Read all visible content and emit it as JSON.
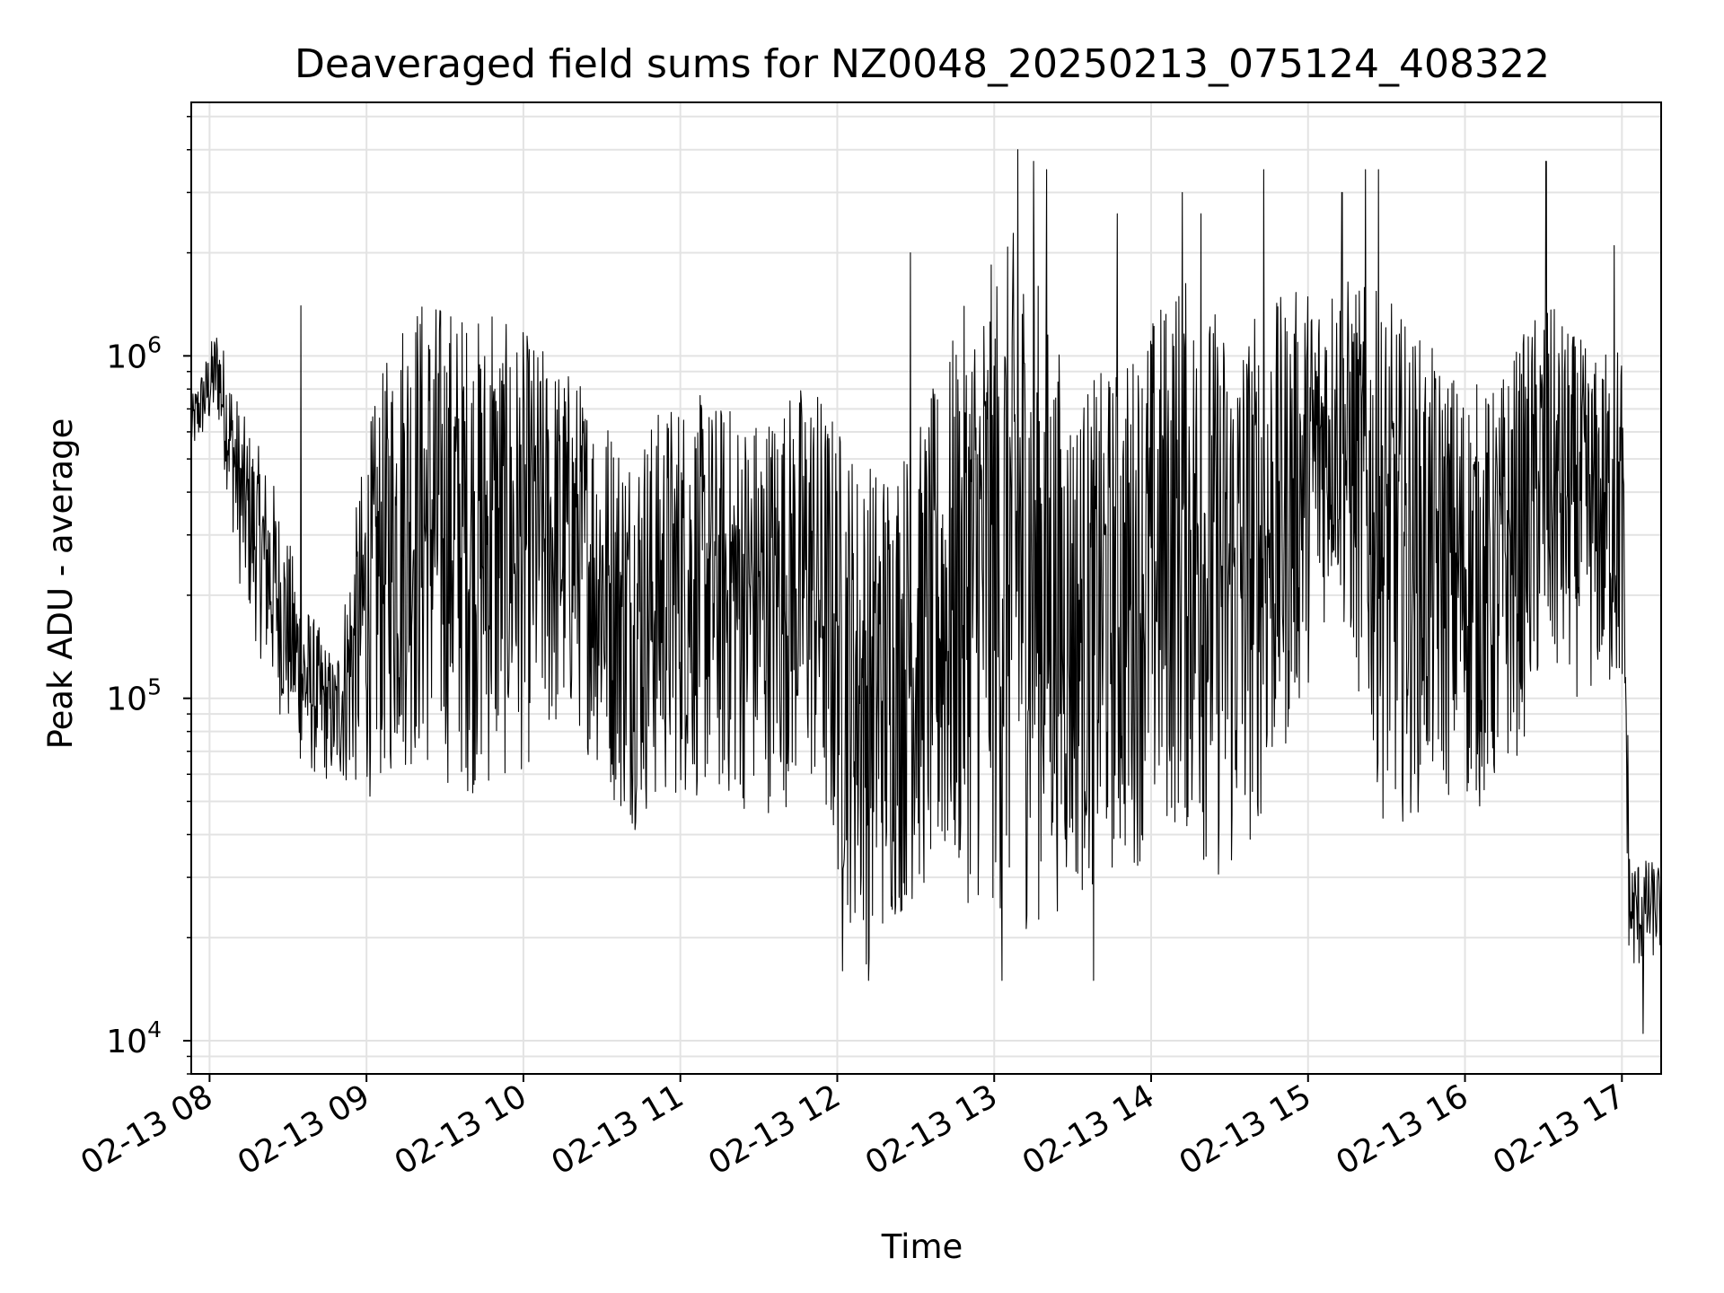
{
  "chart_data": {
    "type": "line",
    "title": "Deaveraged field sums for NZ0048_20250213_075124_408322",
    "xlabel": "Time",
    "ylabel": "Peak ADU - average",
    "yscale": "log",
    "ylim": [
      8000,
      5500000
    ],
    "xlim": [
      "02-13 07:53",
      "02-13 17:15"
    ],
    "grid": true,
    "line_color": "#000000",
    "x_ticks": [
      "02-13 08",
      "02-13 09",
      "02-13 10",
      "02-13 11",
      "02-13 12",
      "02-13 13",
      "02-13 14",
      "02-13 15",
      "02-13 16",
      "02-13 17"
    ],
    "y_ticks": [
      {
        "base": "10",
        "exp": "4",
        "value": 10000
      },
      {
        "base": "10",
        "exp": "5",
        "value": 100000
      },
      {
        "base": "10",
        "exp": "6",
        "value": 1000000
      }
    ],
    "series": [
      {
        "values_note": "",
        "x_start": "02-13 07:53",
        "x_end": "02-13 17:15",
        "envelope": [
          {
            "t": "02-13 07:53",
            "lo": 500000,
            "hi": 750000
          },
          {
            "t": "02-13 08:03",
            "lo": 650000,
            "hi": 1250000
          },
          {
            "t": "02-13 08:12",
            "lo": 200000,
            "hi": 700000
          },
          {
            "t": "02-13 08:24",
            "lo": 100000,
            "hi": 450000
          },
          {
            "t": "02-13 08:36",
            "lo": 60000,
            "hi": 200000
          },
          {
            "t": "02-13 08:48",
            "lo": 55000,
            "hi": 130000
          },
          {
            "t": "02-13 09:00",
            "lo": 50000,
            "hi": 600000
          },
          {
            "t": "02-13 09:15",
            "lo": 60000,
            "hi": 1600000
          },
          {
            "t": "02-13 09:30",
            "lo": 55000,
            "hi": 1500000
          },
          {
            "t": "02-13 09:45",
            "lo": 50000,
            "hi": 1300000
          },
          {
            "t": "02-13 10:00",
            "lo": 60000,
            "hi": 1200000
          },
          {
            "t": "02-13 10:20",
            "lo": 80000,
            "hi": 900000
          },
          {
            "t": "02-13 10:40",
            "lo": 40000,
            "hi": 600000
          },
          {
            "t": "02-13 11:00",
            "lo": 50000,
            "hi": 800000
          },
          {
            "t": "02-13 11:30",
            "lo": 45000,
            "hi": 700000
          },
          {
            "t": "02-13 11:50",
            "lo": 50000,
            "hi": 900000
          },
          {
            "t": "02-13 12:10",
            "lo": 16000,
            "hi": 500000
          },
          {
            "t": "02-13 12:30",
            "lo": 25000,
            "hi": 600000
          },
          {
            "t": "02-13 12:50",
            "lo": 25000,
            "hi": 1500000
          },
          {
            "t": "02-13 13:10",
            "lo": 20000,
            "hi": 2500000
          },
          {
            "t": "02-13 13:30",
            "lo": 25000,
            "hi": 800000
          },
          {
            "t": "02-13 13:50",
            "lo": 30000,
            "hi": 1000000
          },
          {
            "t": "02-13 14:10",
            "lo": 40000,
            "hi": 1800000
          },
          {
            "t": "02-13 14:30",
            "lo": 25000,
            "hi": 1300000
          },
          {
            "t": "02-13 14:50",
            "lo": 60000,
            "hi": 1500000
          },
          {
            "t": "02-13 15:10",
            "lo": 200000,
            "hi": 1800000
          },
          {
            "t": "02-13 15:30",
            "lo": 40000,
            "hi": 1500000
          },
          {
            "t": "02-13 15:50",
            "lo": 50000,
            "hi": 1000000
          },
          {
            "t": "02-13 16:10",
            "lo": 45000,
            "hi": 800000
          },
          {
            "t": "02-13 16:30",
            "lo": 100000,
            "hi": 1500000
          },
          {
            "t": "02-13 16:50",
            "lo": 100000,
            "hi": 1000000
          },
          {
            "t": "02-13 17:00",
            "lo": 90000,
            "hi": 1200000
          },
          {
            "t": "02-13 17:03",
            "lo": 15000,
            "hi": 35000
          },
          {
            "t": "02-13 17:15",
            "lo": 18000,
            "hi": 33000
          }
        ],
        "spikes": [
          {
            "t": "02-13 08:35",
            "v": 1400000
          },
          {
            "t": "02-13 09:48",
            "v": 1300000
          },
          {
            "t": "02-13 12:28",
            "v": 2000000
          },
          {
            "t": "02-13 13:09",
            "v": 4000000
          },
          {
            "t": "02-13 13:15",
            "v": 3700000
          },
          {
            "t": "02-13 13:20",
            "v": 3500000
          },
          {
            "t": "02-13 13:47",
            "v": 2600000
          },
          {
            "t": "02-13 14:12",
            "v": 3000000
          },
          {
            "t": "02-13 14:19",
            "v": 2600000
          },
          {
            "t": "02-13 14:43",
            "v": 3500000
          },
          {
            "t": "02-13 15:13",
            "v": 3000000
          },
          {
            "t": "02-13 15:22",
            "v": 3500000
          },
          {
            "t": "02-13 15:27",
            "v": 3500000
          },
          {
            "t": "02-13 16:31",
            "v": 3700000
          },
          {
            "t": "02-13 16:57",
            "v": 2100000
          },
          {
            "t": "02-13 12:02",
            "v": 16000
          },
          {
            "t": "02-13 12:12",
            "v": 15000
          },
          {
            "t": "02-13 13:03",
            "v": 15000
          },
          {
            "t": "02-13 13:38",
            "v": 15000
          },
          {
            "t": "02-13 17:08",
            "v": 10500
          }
        ]
      }
    ]
  }
}
